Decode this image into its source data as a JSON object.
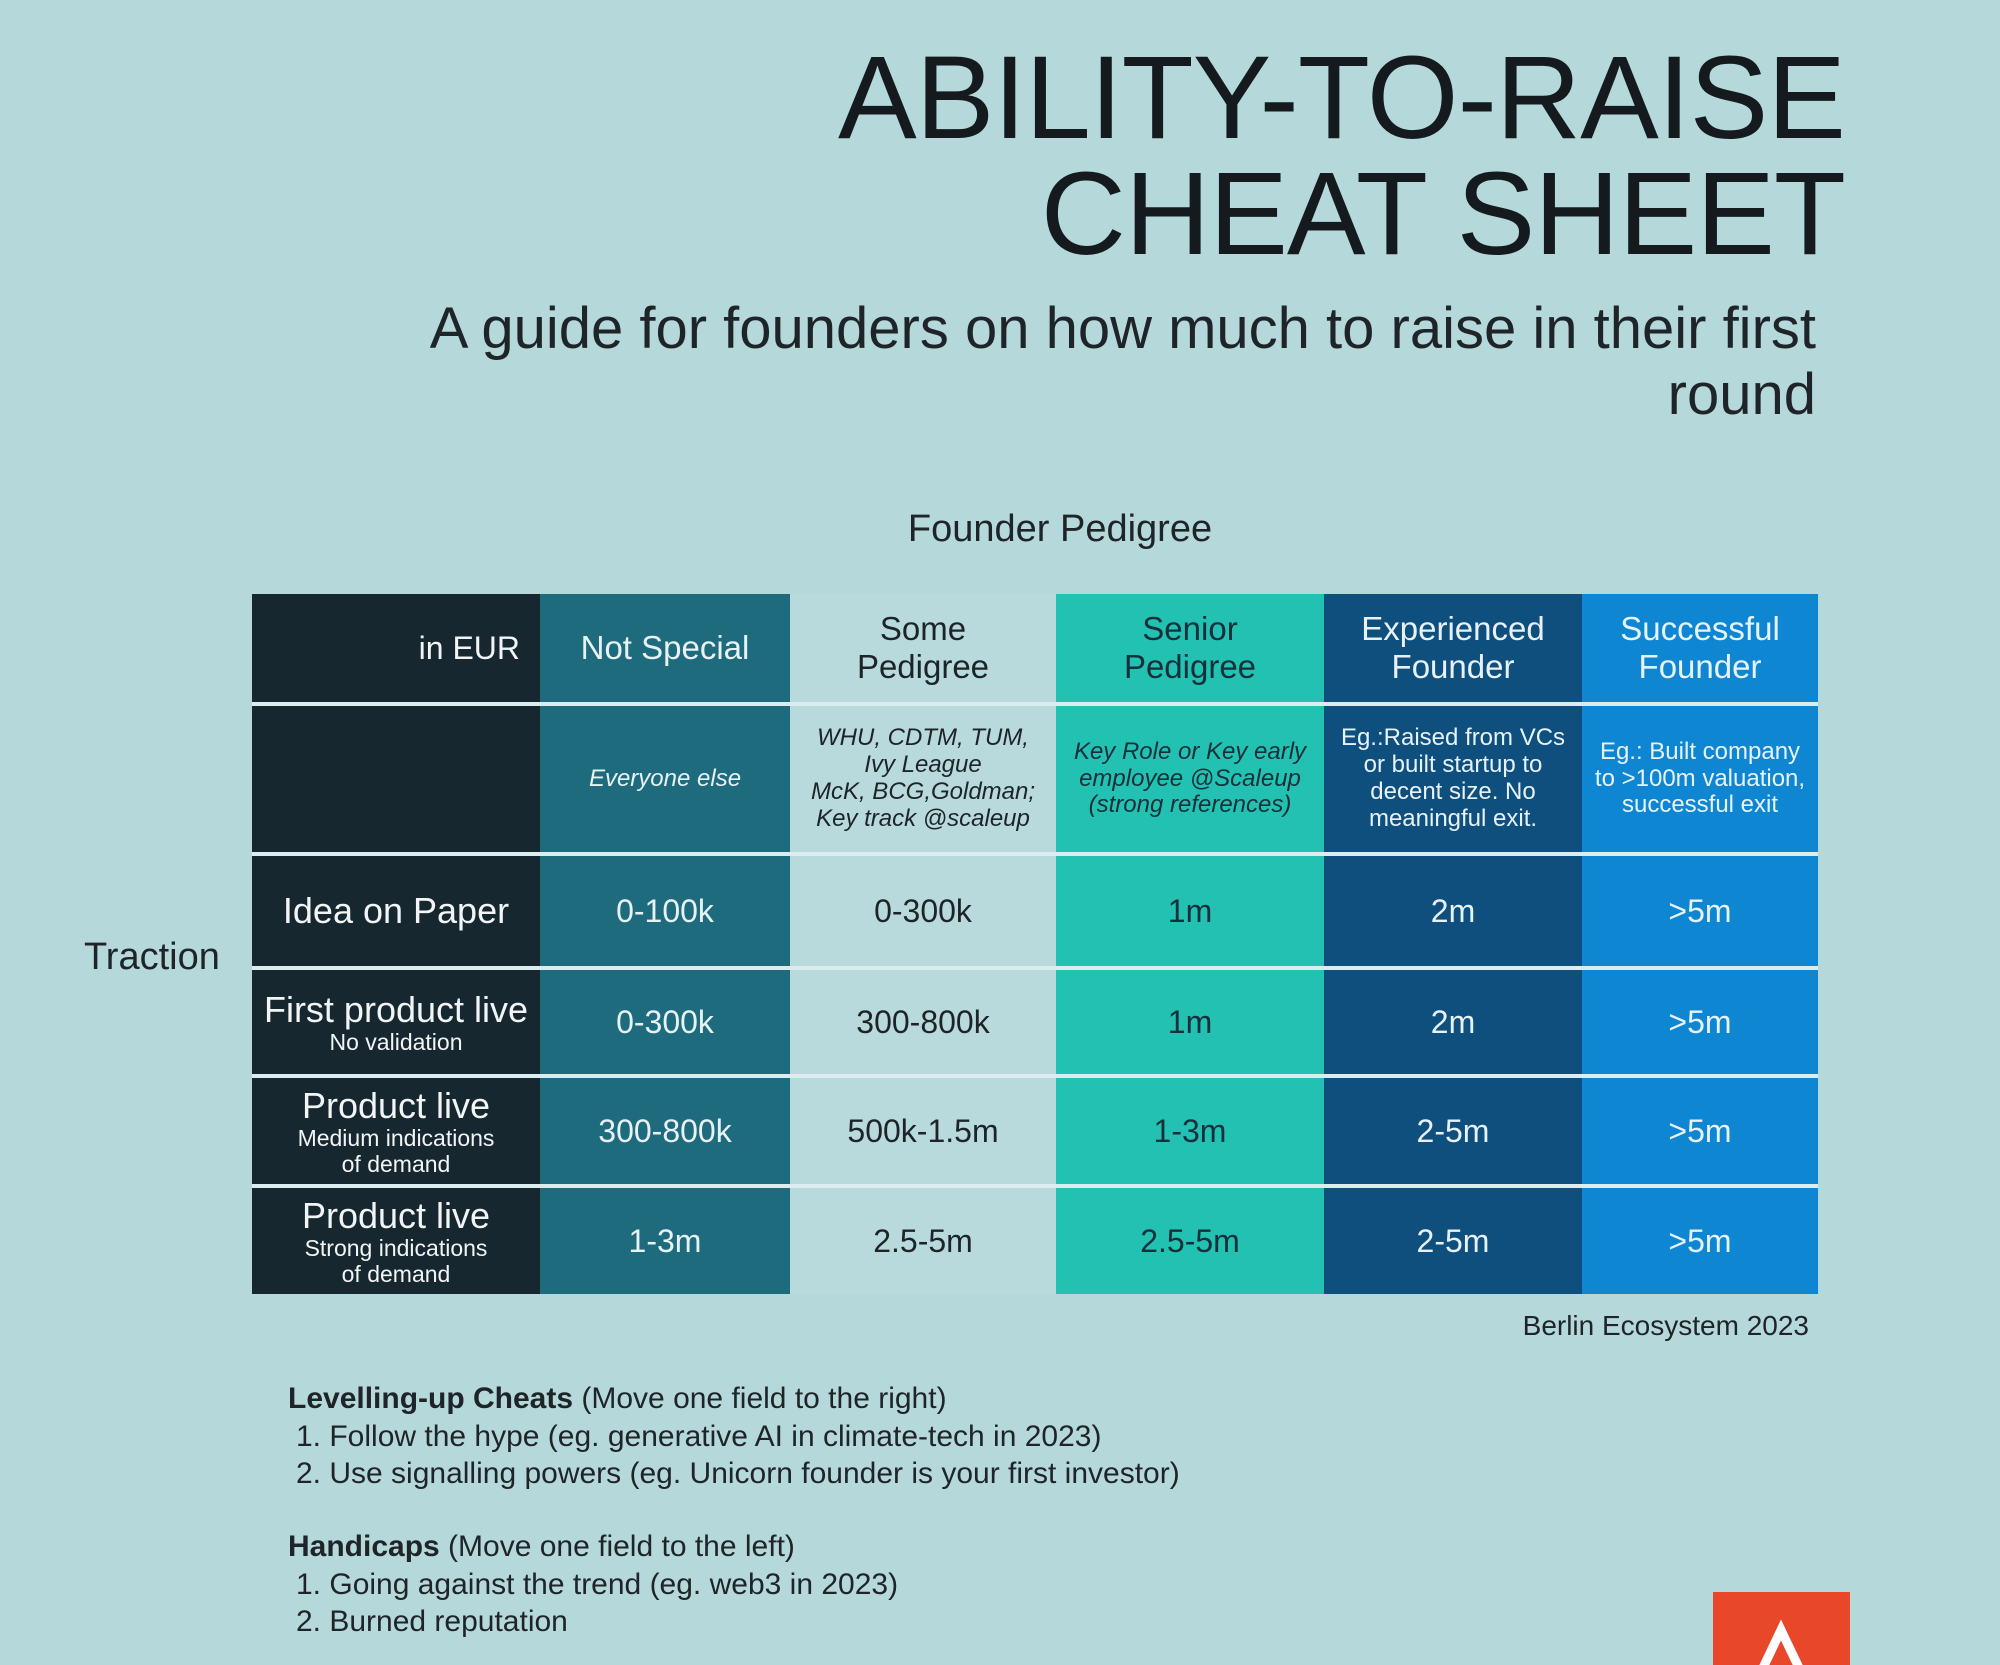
{
  "title": {
    "line1": "ABILITY-TO-RAISE",
    "line2": "CHEAT SHEET"
  },
  "subtitle": {
    "line1": "A guide for founders on how much to raise in their first",
    "line2": "round"
  },
  "axis": {
    "pedigree": "Founder Pedigree",
    "traction": "Traction"
  },
  "table": {
    "corner": "in EUR",
    "columns": [
      {
        "header": [
          "Not Special"
        ],
        "desc": [
          "Everyone else"
        ]
      },
      {
        "header": [
          "Some",
          "Pedigree"
        ],
        "desc": [
          "WHU, CDTM, TUM,",
          "Ivy League",
          "McK, BCG,Goldman;",
          "Key track @scaleup"
        ]
      },
      {
        "header": [
          "Senior",
          "Pedigree"
        ],
        "desc": [
          "Key Role or Key early",
          "employee @Scaleup",
          "(strong references)"
        ]
      },
      {
        "header": [
          "Experienced",
          "Founder"
        ],
        "desc": [
          "Eg.:Raised from VCs",
          "or built startup to",
          "decent size. No",
          "meaningful exit."
        ]
      },
      {
        "header": [
          "Successful",
          "Founder"
        ],
        "desc": [
          "Eg.: Built company",
          "to >100m valuation,",
          "successful exit"
        ]
      }
    ],
    "rows": [
      {
        "label": "Idea on Paper",
        "sub": [],
        "values": [
          "0-100k",
          "0-300k",
          "1m",
          "2m",
          ">5m"
        ]
      },
      {
        "label": "First product live",
        "sub": [
          "No validation"
        ],
        "values": [
          "0-300k",
          "300-800k",
          "1m",
          "2m",
          ">5m"
        ]
      },
      {
        "label": "Product live",
        "sub": [
          "Medium indications",
          "of demand"
        ],
        "values": [
          "300-800k",
          "500k-1.5m",
          "1-3m",
          "2-5m",
          ">5m"
        ]
      },
      {
        "label": "Product live",
        "sub": [
          "Strong indications",
          "of demand"
        ],
        "values": [
          "1-3m",
          "2.5-5m",
          "2.5-5m",
          "2-5m",
          ">5m"
        ]
      }
    ]
  },
  "source": "Berlin Ecosystem 2023",
  "notes": {
    "cheats": {
      "title": "Levelling-up Cheats",
      "hint": " (Move one field to the right)",
      "items": [
        "1. Follow the hype (eg. generative AI in climate-tech in 2023)",
        "2. Use signalling powers (eg. Unicorn founder is your first investor)"
      ]
    },
    "handicaps": {
      "title": "Handicaps",
      "hint": " (Move one field to the left)",
      "items": [
        "1. Going against the trend (eg. web3 in 2023)",
        "2. Burned reputation"
      ]
    }
  },
  "colors": {
    "background": "#b5d8da",
    "label_col": "#17272f",
    "not_special": "#1f6b7e",
    "some_pedigree": "#b8dadc",
    "senior_pedigree": "#23c1b2",
    "experienced": "#0f4f7e",
    "successful": "#0e86d2",
    "logo": "#e8472a"
  },
  "logo_icon": "a-logo-icon"
}
